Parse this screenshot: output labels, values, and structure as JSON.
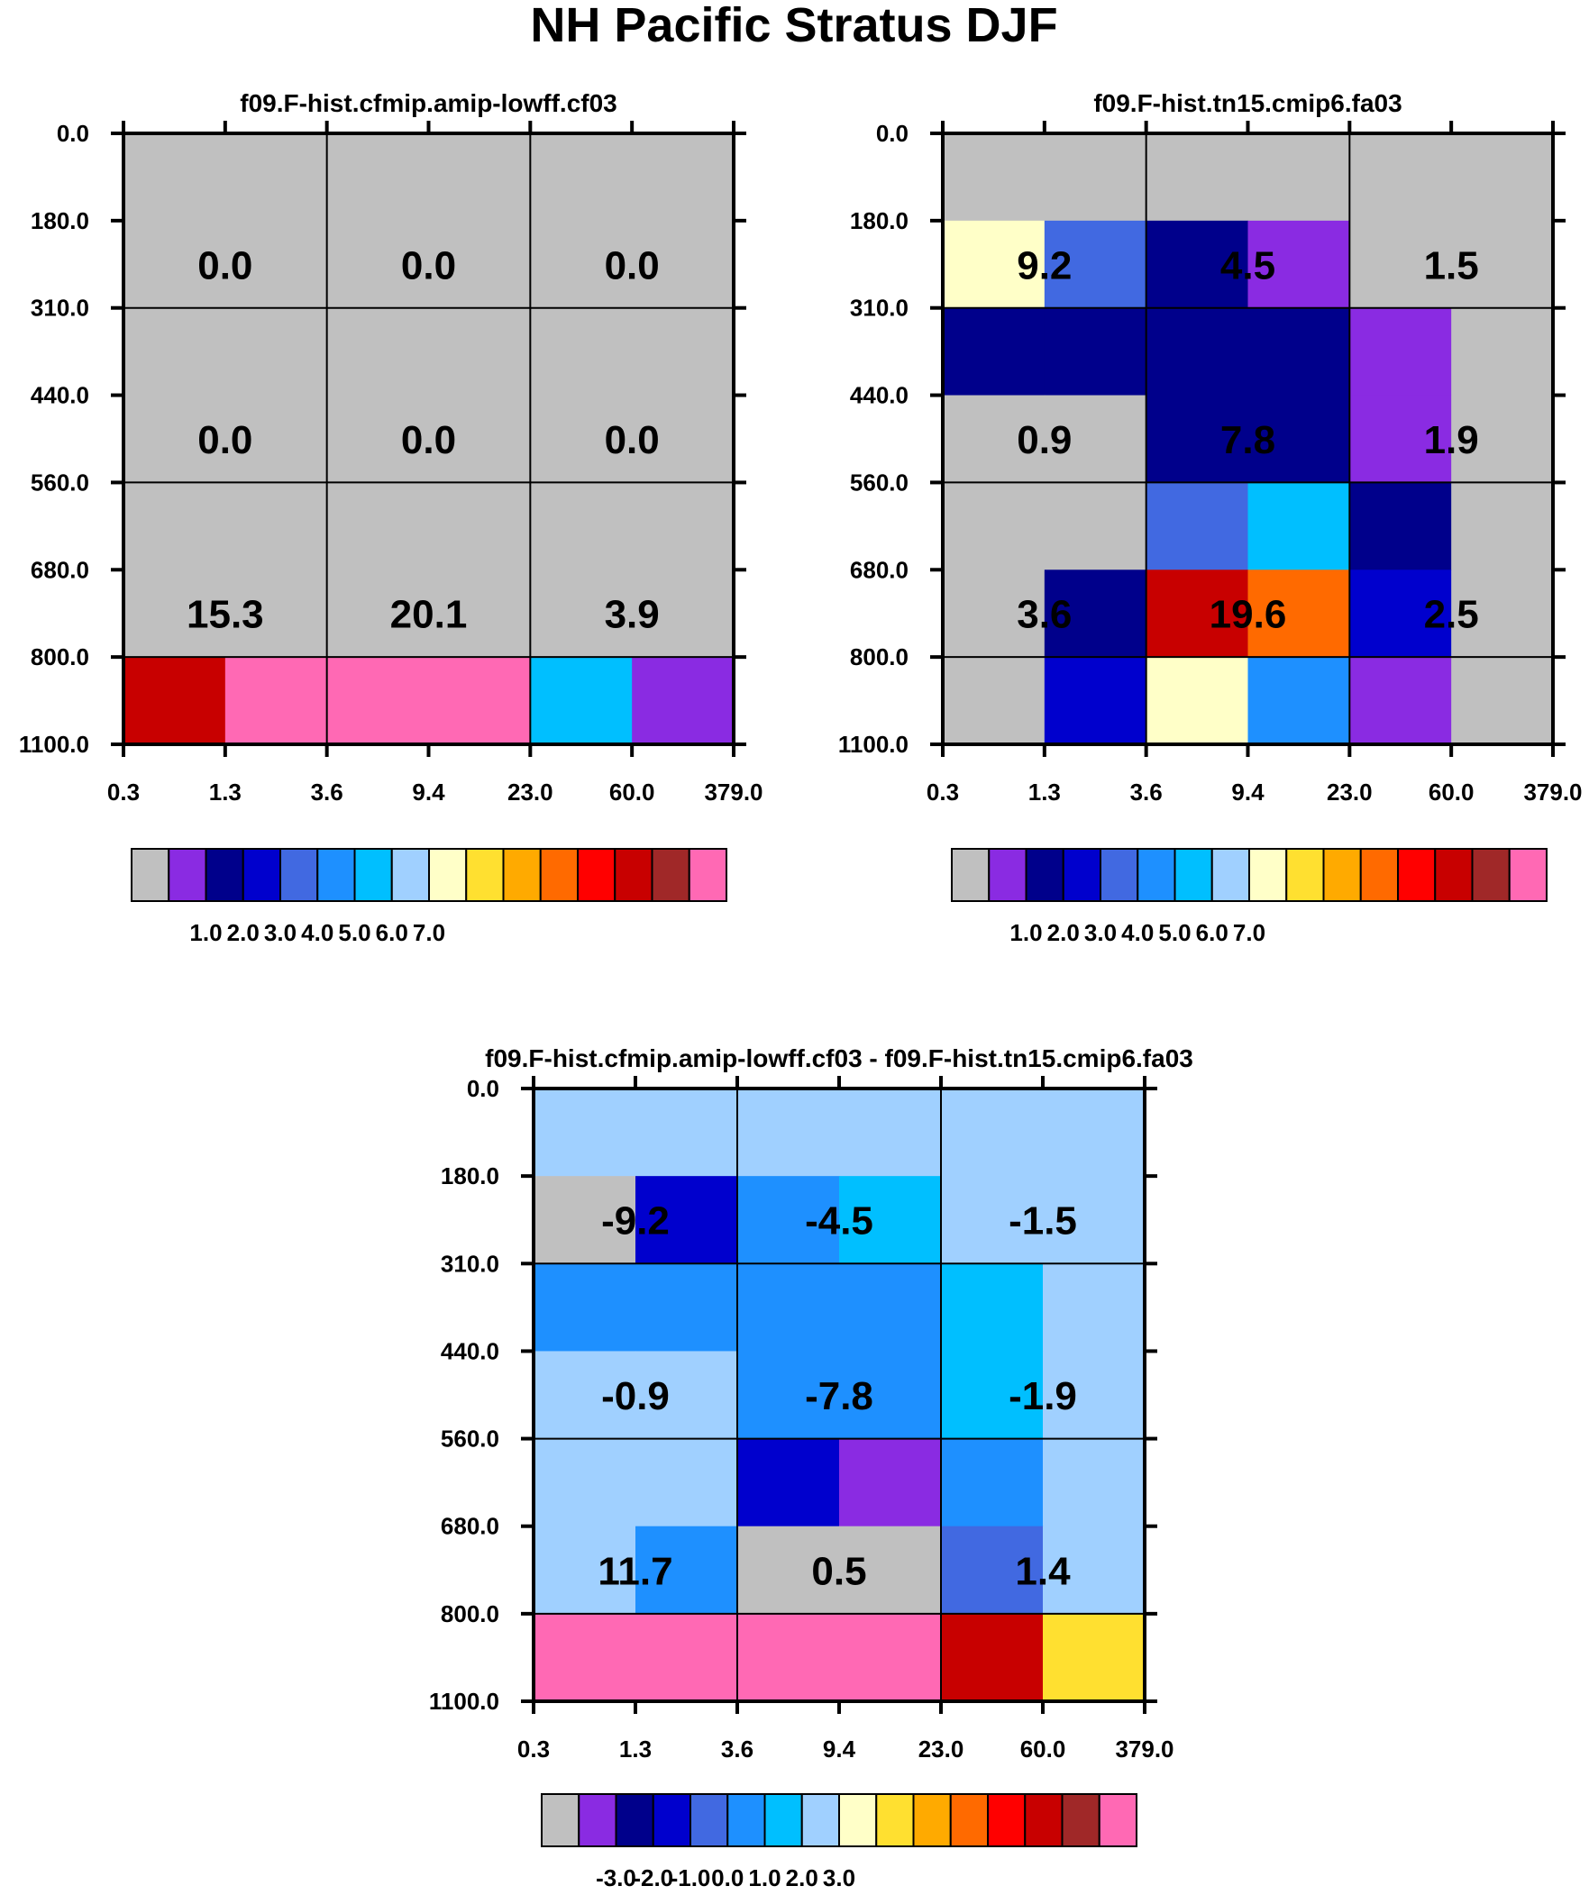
{
  "figure_title": "NH Pacific Stratus DJF",
  "colors": {
    "palette": [
      "#c0c0c0",
      "#8a2be2",
      "#00008b",
      "#0000cd",
      "#4169e1",
      "#1e90ff",
      "#00bfff",
      "#a0d0ff",
      "#ffffc8",
      "#ffe030",
      "#ffaa00",
      "#ff6a00",
      "#ff0000",
      "#c80000",
      "#a02828",
      "#ff69b4"
    ],
    "grid": "#000000"
  },
  "chart_data": [
    {
      "type": "heatmap",
      "title": "f09.F-hist.cfmip.amip-lowff.cf03",
      "x_ticks": [
        "0.3",
        "1.3",
        "3.6",
        "9.4",
        "23.0",
        "60.0",
        "379.0"
      ],
      "y_ticks": [
        "0.0",
        "180.0",
        "310.0",
        "440.0",
        "560.0",
        "680.0",
        "800.0",
        "1100.0"
      ],
      "cells": [
        [
          0,
          0,
          0,
          0,
          0,
          0
        ],
        [
          0,
          0,
          0,
          0,
          0,
          0
        ],
        [
          0,
          0,
          0,
          0,
          0,
          0
        ],
        [
          0,
          0,
          0,
          0,
          0,
          0
        ],
        [
          0,
          0,
          0,
          0,
          0,
          0
        ],
        [
          0,
          0,
          0,
          0,
          0,
          0
        ],
        [
          13,
          15,
          15,
          15,
          6,
          1
        ]
      ],
      "cell_labels": [
        [
          "0.0",
          "0.0",
          "0.0"
        ],
        [
          "0.0",
          "0.0",
          "0.0"
        ],
        [
          "15.3",
          "20.1",
          "3.9"
        ]
      ],
      "colorbar_labels": [
        "1.0",
        "2.0",
        "3.0",
        "4.0",
        "5.0",
        "6.0",
        "7.0"
      ]
    },
    {
      "type": "heatmap",
      "title": "f09.F-hist.tn15.cmip6.fa03",
      "x_ticks": [
        "0.3",
        "1.3",
        "3.6",
        "9.4",
        "23.0",
        "60.0",
        "379.0"
      ],
      "y_ticks": [
        "0.0",
        "180.0",
        "310.0",
        "440.0",
        "560.0",
        "680.0",
        "800.0",
        "1100.0"
      ],
      "cells": [
        [
          0,
          0,
          0,
          0,
          0,
          0
        ],
        [
          8,
          4,
          2,
          1,
          0,
          0
        ],
        [
          2,
          2,
          2,
          2,
          1,
          0
        ],
        [
          0,
          0,
          2,
          2,
          1,
          0
        ],
        [
          0,
          0,
          4,
          6,
          2,
          0
        ],
        [
          0,
          2,
          13,
          11,
          3,
          0
        ],
        [
          0,
          3,
          8,
          5,
          1,
          0
        ]
      ],
      "cell_labels": [
        [
          "9.2",
          "4.5",
          "1.5"
        ],
        [
          "0.9",
          "7.8",
          "1.9"
        ],
        [
          "3.6",
          "19.6",
          "2.5"
        ]
      ],
      "colorbar_labels": [
        "1.0",
        "2.0",
        "3.0",
        "4.0",
        "5.0",
        "6.0",
        "7.0"
      ]
    },
    {
      "type": "heatmap",
      "title": "f09.F-hist.cfmip.amip-lowff.cf03 - f09.F-hist.tn15.cmip6.fa03",
      "x_ticks": [
        "0.3",
        "1.3",
        "3.6",
        "9.4",
        "23.0",
        "60.0",
        "379.0"
      ],
      "y_ticks": [
        "0.0",
        "180.0",
        "310.0",
        "440.0",
        "560.0",
        "680.0",
        "800.0",
        "1100.0"
      ],
      "cells": [
        [
          7,
          7,
          7,
          7,
          7,
          7
        ],
        [
          0,
          3,
          5,
          6,
          7,
          7
        ],
        [
          5,
          5,
          5,
          5,
          6,
          7
        ],
        [
          7,
          7,
          5,
          5,
          6,
          7
        ],
        [
          7,
          7,
          3,
          1,
          5,
          7
        ],
        [
          7,
          5,
          0,
          0,
          4,
          7
        ],
        [
          15,
          15,
          15,
          15,
          13,
          9
        ]
      ],
      "cell_labels": [
        [
          "-9.2",
          "-4.5",
          "-1.5"
        ],
        [
          "-0.9",
          "-7.8",
          "-1.9"
        ],
        [
          "11.7",
          "0.5",
          "1.4"
        ]
      ],
      "colorbar_labels": [
        "-3.0",
        "-2.0",
        "-1.0",
        "0.0",
        "1.0",
        "2.0",
        "3.0"
      ]
    }
  ]
}
